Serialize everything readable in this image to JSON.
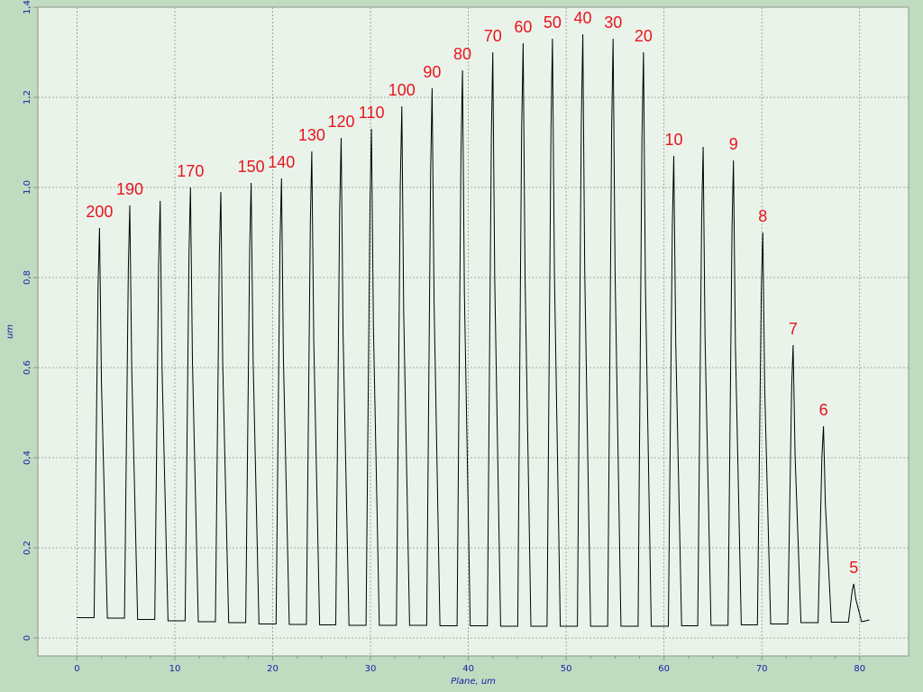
{
  "colors": {
    "background": "#c0dcc0",
    "plot_area": "#eaf3ea",
    "grid": "#8c968c",
    "axis_text": "#1a1aa8",
    "trace": "#000000",
    "peak_labels": "#e8141e"
  },
  "chart_data": {
    "type": "line",
    "xlabel": "Plane, um",
    "ylabel": "um",
    "xlim": [
      -4,
      85
    ],
    "ylim": [
      -0.04,
      1.4
    ],
    "xticks": [
      0,
      10,
      20,
      30,
      40,
      50,
      60,
      70,
      80
    ],
    "yticks": [
      0,
      0.2,
      0.4,
      0.6,
      0.8,
      1.0,
      1.2,
      1.4
    ],
    "xtick_labels": [
      "0",
      "10",
      "20",
      "30",
      "40",
      "50",
      "60",
      "70",
      "80"
    ],
    "ytick_labels": [
      "0",
      "0,2",
      "0,4",
      "0,6",
      "0,8",
      "1,0",
      "1,2",
      "1,4"
    ],
    "grid": true,
    "baseline_start": [
      0,
      0.045
    ],
    "baseline_end": [
      81,
      0.04
    ],
    "baseline_floor": [
      0.045,
      0.044,
      0.041,
      0.038,
      0.036,
      0.034,
      0.031,
      0.03,
      0.029,
      0.028,
      0.028,
      0.028,
      0.027,
      0.027,
      0.026,
      0.026,
      0.026,
      0.026,
      0.026,
      0.026,
      0.027,
      0.028,
      0.029,
      0.031,
      0.034,
      0.035,
      0.036,
      0.037
    ],
    "peaks": [
      {
        "x": 2.3,
        "y": 0.91,
        "label": "200"
      },
      {
        "x": 5.4,
        "y": 0.96,
        "label": "190"
      },
      {
        "x": 8.5,
        "y": 0.97,
        "label": ""
      },
      {
        "x": 11.6,
        "y": 1.0,
        "label": "170"
      },
      {
        "x": 14.7,
        "y": 0.99,
        "label": ""
      },
      {
        "x": 17.8,
        "y": 1.01,
        "label": "150"
      },
      {
        "x": 20.9,
        "y": 1.02,
        "label": "140"
      },
      {
        "x": 24.0,
        "y": 1.08,
        "label": "130"
      },
      {
        "x": 27.0,
        "y": 1.11,
        "label": "120"
      },
      {
        "x": 30.1,
        "y": 1.13,
        "label": "110"
      },
      {
        "x": 33.2,
        "y": 1.18,
        "label": "100"
      },
      {
        "x": 36.3,
        "y": 1.22,
        "label": "90"
      },
      {
        "x": 39.4,
        "y": 1.26,
        "label": "80"
      },
      {
        "x": 42.5,
        "y": 1.3,
        "label": "70"
      },
      {
        "x": 45.6,
        "y": 1.32,
        "label": "60"
      },
      {
        "x": 48.6,
        "y": 1.33,
        "label": "50"
      },
      {
        "x": 51.7,
        "y": 1.34,
        "label": "40"
      },
      {
        "x": 54.8,
        "y": 1.33,
        "label": "30"
      },
      {
        "x": 57.9,
        "y": 1.3,
        "label": "20"
      },
      {
        "x": 61.0,
        "y": 1.07,
        "label": "10"
      },
      {
        "x": 64.0,
        "y": 1.09,
        "label": ""
      },
      {
        "x": 67.1,
        "y": 1.06,
        "label": "9"
      },
      {
        "x": 70.1,
        "y": 0.9,
        "label": "8"
      },
      {
        "x": 73.2,
        "y": 0.65,
        "label": "7"
      },
      {
        "x": 76.3,
        "y": 0.47,
        "label": "6"
      },
      {
        "x": 79.4,
        "y": 0.12,
        "label": "5"
      }
    ]
  }
}
